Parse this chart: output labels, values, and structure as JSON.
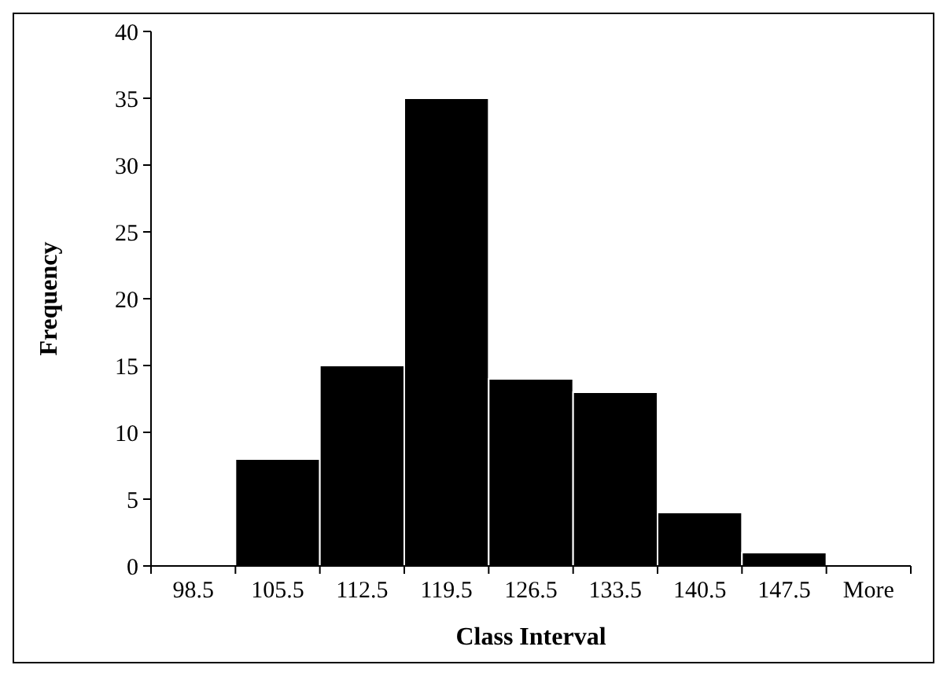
{
  "chart_data": {
    "type": "bar",
    "xlabel": "Class Interval",
    "ylabel": "Frequency",
    "categories": [
      "98.5",
      "105.5",
      "112.5",
      "119.5",
      "126.5",
      "133.5",
      "140.5",
      "147.5",
      "More"
    ],
    "values": [
      0,
      8,
      15,
      35,
      14,
      13,
      4,
      1,
      0
    ],
    "color": "#000000",
    "ylim": [
      0,
      40
    ],
    "yticks": [
      0,
      5,
      10,
      15,
      20,
      25,
      30,
      35,
      40
    ],
    "grid": false
  }
}
